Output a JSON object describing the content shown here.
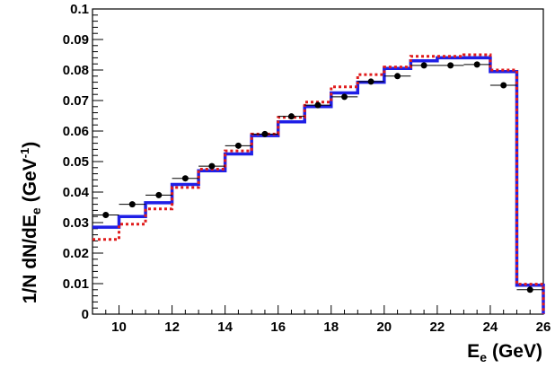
{
  "chart_data": {
    "type": "line",
    "xlabel": "E",
    "xlabel_sub": "e",
    "xlabel_unit": "(GeV)",
    "ylabel_main": "1/N dN/dE",
    "ylabel_sub": "e",
    "ylabel_unit_pre": "(GeV",
    "ylabel_unit_sup": "-1",
    "ylabel_unit_post": ")",
    "xlim": [
      9,
      26
    ],
    "ylim": [
      0,
      0.1
    ],
    "x_ticks": [
      10,
      12,
      14,
      16,
      18,
      20,
      22,
      24,
      26
    ],
    "x_tick_labels": [
      "10",
      "12",
      "14",
      "16",
      "18",
      "20",
      "22",
      "24",
      "26"
    ],
    "y_ticks": [
      0,
      0.01,
      0.02,
      0.03,
      0.04,
      0.05,
      0.06,
      0.07,
      0.08,
      0.09,
      0.1
    ],
    "y_tick_labels": [
      "0",
      "0.01",
      "0.02",
      "0.03",
      "0.04",
      "0.05",
      "0.06",
      "0.07",
      "0.08",
      "0.09",
      "0.1"
    ],
    "grid": false,
    "series": [
      {
        "style": "histogram",
        "color": "#1f1fe6",
        "dash": "solid",
        "bin_edges": [
          9,
          10,
          11,
          12,
          13,
          14,
          15,
          16,
          17,
          18,
          19,
          20,
          21,
          22,
          23,
          24,
          25,
          26
        ],
        "values": [
          0.0285,
          0.032,
          0.0365,
          0.0425,
          0.047,
          0.0525,
          0.0585,
          0.063,
          0.068,
          0.0725,
          0.076,
          0.0805,
          0.083,
          0.084,
          0.084,
          0.0795,
          0.0095
        ]
      },
      {
        "style": "histogram",
        "color": "#e01c1c",
        "dash": "dotted",
        "bin_edges": [
          9,
          10,
          11,
          12,
          13,
          14,
          15,
          16,
          17,
          18,
          19,
          20,
          21,
          22,
          23,
          24,
          25,
          26
        ],
        "values": [
          0.0245,
          0.0295,
          0.0345,
          0.0415,
          0.0475,
          0.0535,
          0.059,
          0.0645,
          0.0695,
          0.0745,
          0.0785,
          0.081,
          0.0845,
          0.0845,
          0.085,
          0.08,
          0.0098
        ]
      },
      {
        "style": "points",
        "color": "#000000",
        "x": [
          9.5,
          10.5,
          11.5,
          12.5,
          13.5,
          14.5,
          15.5,
          16.5,
          17.5,
          18.5,
          19.5,
          20.5,
          21.5,
          22.5,
          23.5,
          24.5,
          25.5
        ],
        "values": [
          0.0325,
          0.036,
          0.039,
          0.0445,
          0.0485,
          0.0552,
          0.059,
          0.0648,
          0.0685,
          0.0712,
          0.0762,
          0.078,
          0.0815,
          0.0815,
          0.0818,
          0.075,
          0.008
        ],
        "x_err": 0.5
      }
    ]
  }
}
